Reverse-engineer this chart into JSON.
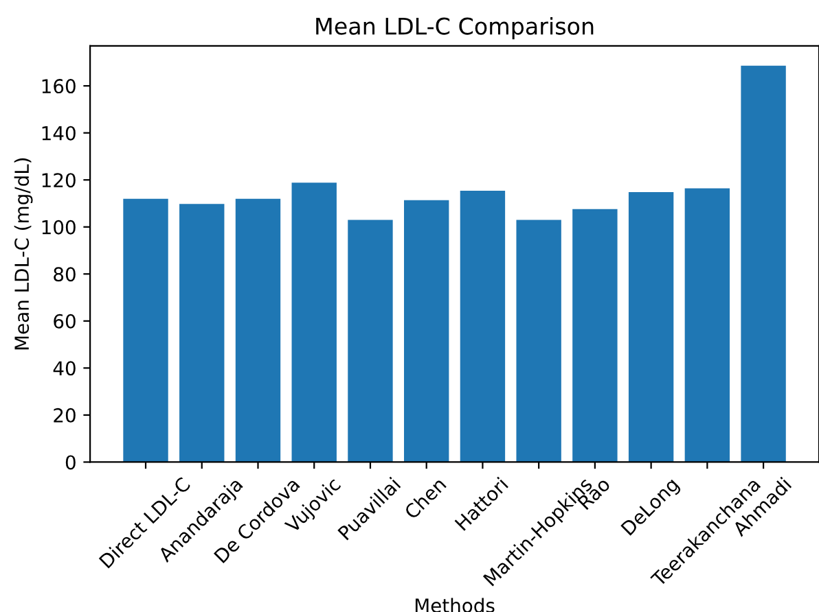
{
  "chart_data": {
    "type": "bar",
    "title": "Mean LDL-C Comparison",
    "xlabel": "Methods",
    "ylabel": "Mean LDL-C (mg/dL)",
    "categories": [
      "Direct LDL-C",
      "Anandaraja",
      "De Cordova",
      "Vujovic",
      "Puavillai",
      "Chen",
      "Hattori",
      "Martin-Hopkins",
      "Rao",
      "DeLong",
      "Teerakanchana",
      "Ahmadi"
    ],
    "values": [
      112,
      109.8,
      112,
      118.8,
      103,
      111.4,
      115.4,
      103,
      107.6,
      114.8,
      116.4,
      168.6
    ],
    "color": "#1f77b4",
    "ylim": [
      0,
      177
    ],
    "yticks": [
      0,
      20,
      40,
      60,
      80,
      100,
      120,
      140,
      160
    ],
    "grid": false,
    "legend": false
  }
}
